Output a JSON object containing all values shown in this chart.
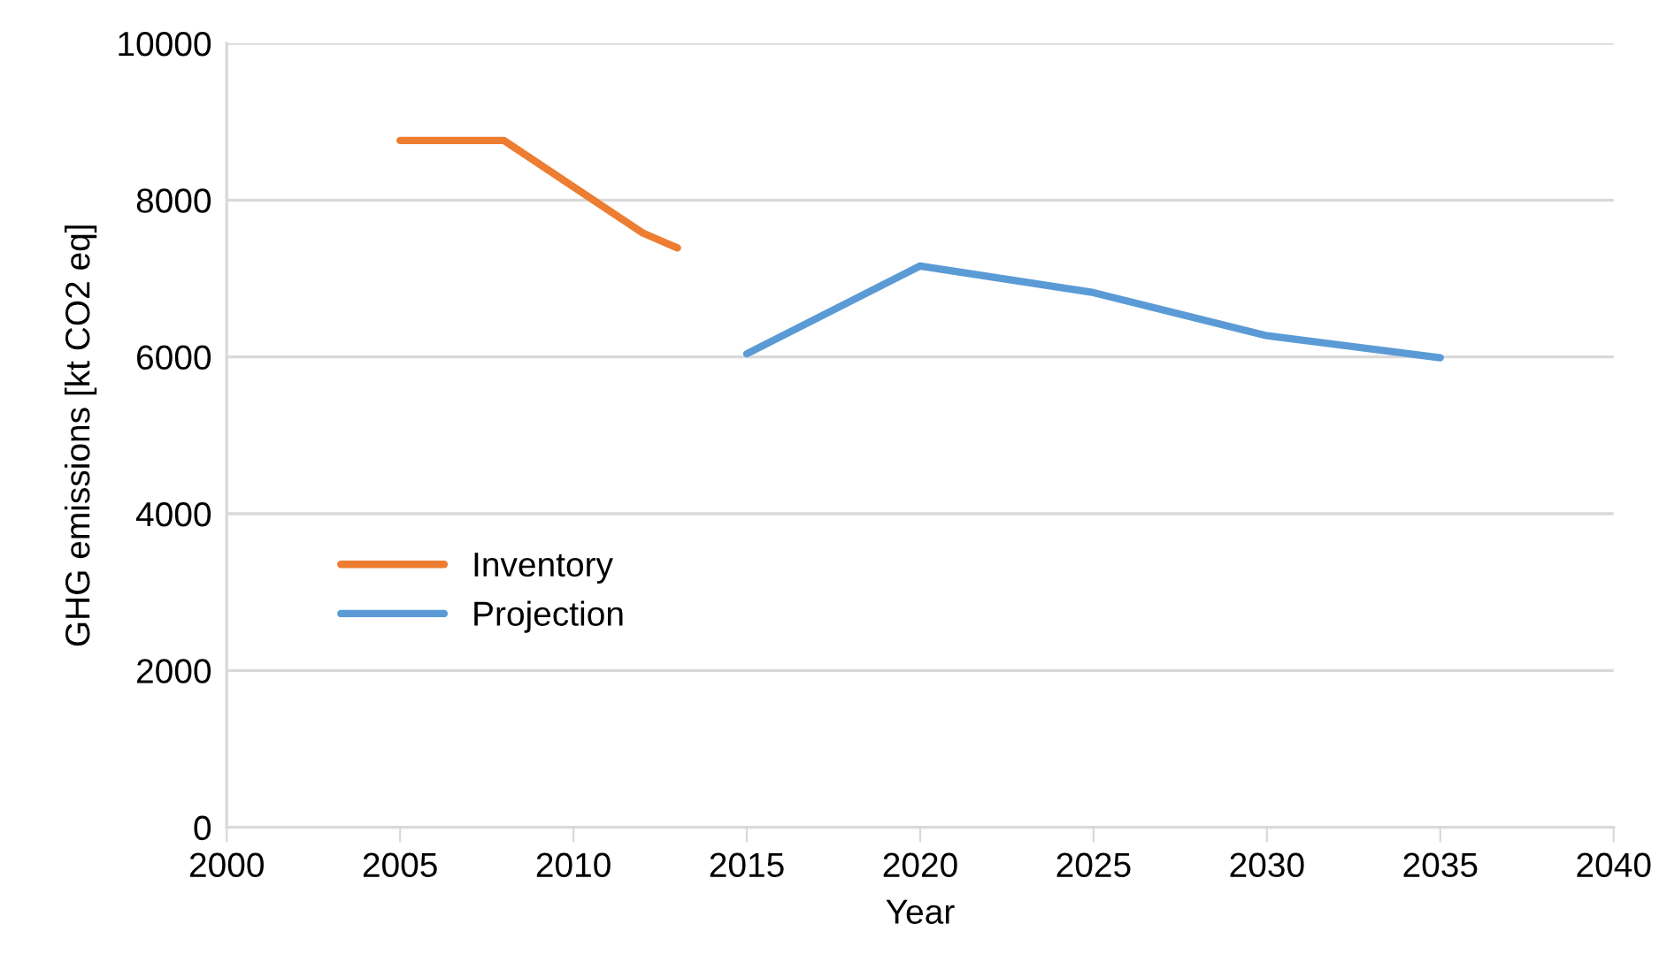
{
  "chart_data": {
    "type": "line",
    "xlabel": "Year",
    "ylabel": "GHG emissions [kt CO2 eq]",
    "xlim": [
      2000,
      2040
    ],
    "xticks": [
      2000,
      2005,
      2010,
      2015,
      2020,
      2025,
      2030,
      2035,
      2040
    ],
    "ylim": [
      0,
      10000
    ],
    "yticks": [
      0,
      2000,
      4000,
      6000,
      8000,
      10000
    ],
    "grid": "y",
    "legend": "left",
    "marker": "none",
    "line_style": "solid",
    "series": [
      {
        "name": "Inventory",
        "color": "#ed7d31",
        "x": [
          2005,
          2008,
          2012,
          2013
        ],
        "values": [
          8760,
          8760,
          7580,
          7390
        ]
      },
      {
        "name": "Projection",
        "color": "#5b9bd5",
        "x": [
          2015,
          2020,
          2025,
          2030,
          2035
        ],
        "values": [
          6040,
          7160,
          6820,
          6270,
          5990
        ]
      }
    ]
  }
}
